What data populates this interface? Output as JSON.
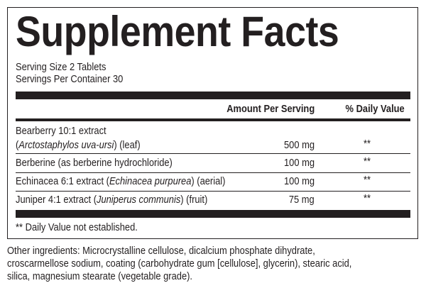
{
  "title": "Supplement Facts",
  "serving_size": "Serving Size 2 Tablets",
  "servings_per_container": "Servings Per Container 30",
  "headers": {
    "amount": "Amount Per Serving",
    "daily_value": "% Daily Value"
  },
  "rows": [
    {
      "name_line1": "Bearberry 10:1 extract",
      "paren_open": " (",
      "latin": "Arctostaphylos uva-ursi",
      "suffix": ") (leaf)",
      "amount": "500 mg",
      "dv": "**"
    },
    {
      "name": "Berberine (as berberine hydrochloride)",
      "amount": "100 mg",
      "dv": "**"
    },
    {
      "prefix": "Echinacea 6:1 extract (",
      "latin": "Echinacea purpurea",
      "suffix": ") (aerial)",
      "amount": "100 mg",
      "dv": "**"
    },
    {
      "prefix": "Juniper 4:1 extract (",
      "latin": "Juniperus communis",
      "suffix": ") (fruit)",
      "amount": "75 mg",
      "dv": "**"
    }
  ],
  "footnote": "** Daily Value not established.",
  "other_ingredients": [
    "Other ingredients: Microcrystalline cellulose, dicalcium phosphate dihydrate,",
    "croscarmellose sodium, coating (carbohydrate gum [cellulose], glycerin), stearic acid,",
    "silica, magnesium stearate (vegetable grade)."
  ]
}
